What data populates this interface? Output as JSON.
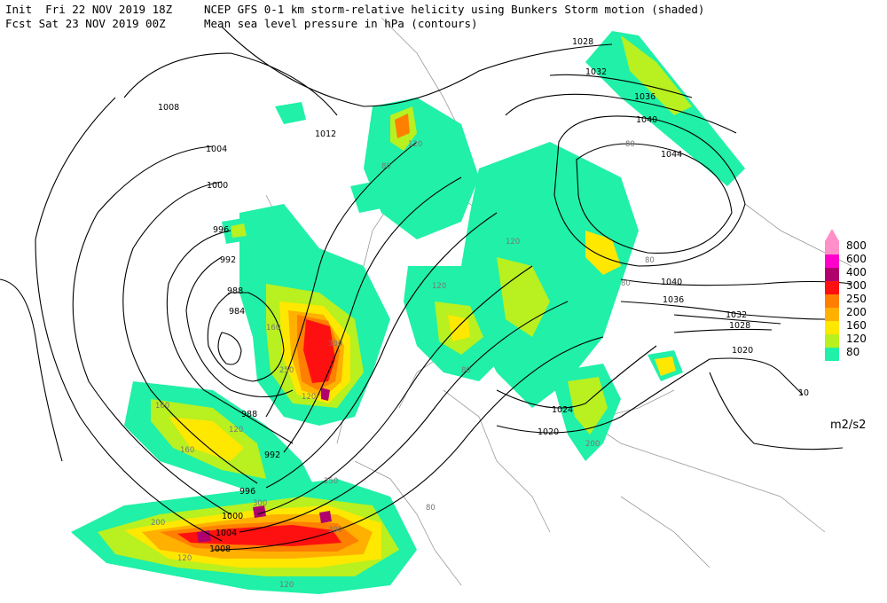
{
  "header": {
    "init_line": "Init  Fri 22 NOV 2019 18Z",
    "fcst_line": "Fcst Sat 23 NOV 2019 00Z",
    "title_line1": "NCEP GFS 0-1 km storm-relative helicity using Bunkers Storm motion (shaded)",
    "title_line2": "Mean sea level pressure in hPa (contours)"
  },
  "legend": {
    "units": "m2/s2",
    "levels": [
      {
        "value": "800",
        "color": "#ff8fc8"
      },
      {
        "value": "600",
        "color": "#ff00cc"
      },
      {
        "value": "400",
        "color": "#b0006e"
      },
      {
        "value": "300",
        "color": "#ff1010"
      },
      {
        "value": "250",
        "color": "#ff7f00"
      },
      {
        "value": "200",
        "color": "#ffb000"
      },
      {
        "value": "160",
        "color": "#ffe800"
      },
      {
        "value": "120",
        "color": "#b8f020"
      },
      {
        "value": "80",
        "color": "#20f0a8"
      }
    ]
  },
  "contours": {
    "labels": [
      "1028",
      "1032",
      "1036",
      "1040",
      "1044",
      "1012",
      "1008",
      "1004",
      "1000",
      "996",
      "992",
      "988",
      "984",
      "988",
      "992",
      "996",
      "1000",
      "1004",
      "1008",
      "1040",
      "1036",
      "1032",
      "1028",
      "1020",
      "1024",
      "1020",
      "10"
    ]
  },
  "helicity_labels": [
    "80",
    "120",
    "160",
    "200",
    "250",
    "300"
  ]
}
